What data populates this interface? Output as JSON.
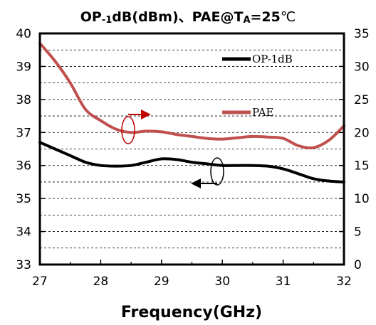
{
  "chart_data": {
    "type": "line",
    "title": "OP-1dB(dBm)、PAE@TA=25℃",
    "title_parts": {
      "a": "OP",
      "sub1": "-1",
      "b": "dB(dBm)、PAE@T",
      "sub2": "A",
      "c": "=25",
      "d": "℃"
    },
    "xlabel": "Frequency(GHz)",
    "xlim": [
      27,
      32
    ],
    "ylim": [
      33,
      40
    ],
    "y2lim": [
      0,
      35
    ],
    "x_ticks": [
      "27",
      "28",
      "29",
      "30",
      "31",
      "32"
    ],
    "y_ticks": [
      "33",
      "34",
      "35",
      "36",
      "37",
      "38",
      "39",
      "40"
    ],
    "y2_ticks": [
      "0",
      "5",
      "10",
      "15",
      "20",
      "25",
      "30",
      "35"
    ],
    "grid": true,
    "legend_position": "top-right",
    "series": [
      {
        "name": "OP-1dB",
        "axis": "left",
        "color": "#000000",
        "x": [
          27,
          27.25,
          27.5,
          27.75,
          28,
          28.25,
          28.5,
          28.75,
          29,
          29.25,
          29.5,
          29.75,
          30,
          30.25,
          30.5,
          30.75,
          31,
          31.25,
          31.5,
          31.75,
          32
        ],
        "y": [
          36.7,
          36.5,
          36.3,
          36.1,
          36.0,
          35.98,
          36.0,
          36.1,
          36.2,
          36.18,
          36.1,
          36.05,
          36.0,
          36.0,
          36.0,
          35.98,
          35.9,
          35.75,
          35.6,
          35.53,
          35.5
        ]
      },
      {
        "name": "PAE",
        "axis": "right",
        "color": "#c0504d",
        "x": [
          27,
          27.25,
          27.5,
          27.75,
          28,
          28.25,
          28.5,
          28.75,
          29,
          29.25,
          29.5,
          29.75,
          30,
          30.25,
          30.5,
          30.75,
          31,
          31.25,
          31.5,
          31.75,
          32
        ],
        "y": [
          33.5,
          30.8,
          27.5,
          23.5,
          21.8,
          20.5,
          20.0,
          20.2,
          20.1,
          19.7,
          19.4,
          19.1,
          19.0,
          19.2,
          19.4,
          19.3,
          19.1,
          18.0,
          17.7,
          18.8,
          21.0
        ]
      }
    ],
    "annotations": [
      {
        "target": "PAE",
        "arrow_direction": "right",
        "color": "#c00000"
      },
      {
        "target": "OP-1dB",
        "arrow_direction": "left",
        "color": "#000000"
      }
    ]
  }
}
